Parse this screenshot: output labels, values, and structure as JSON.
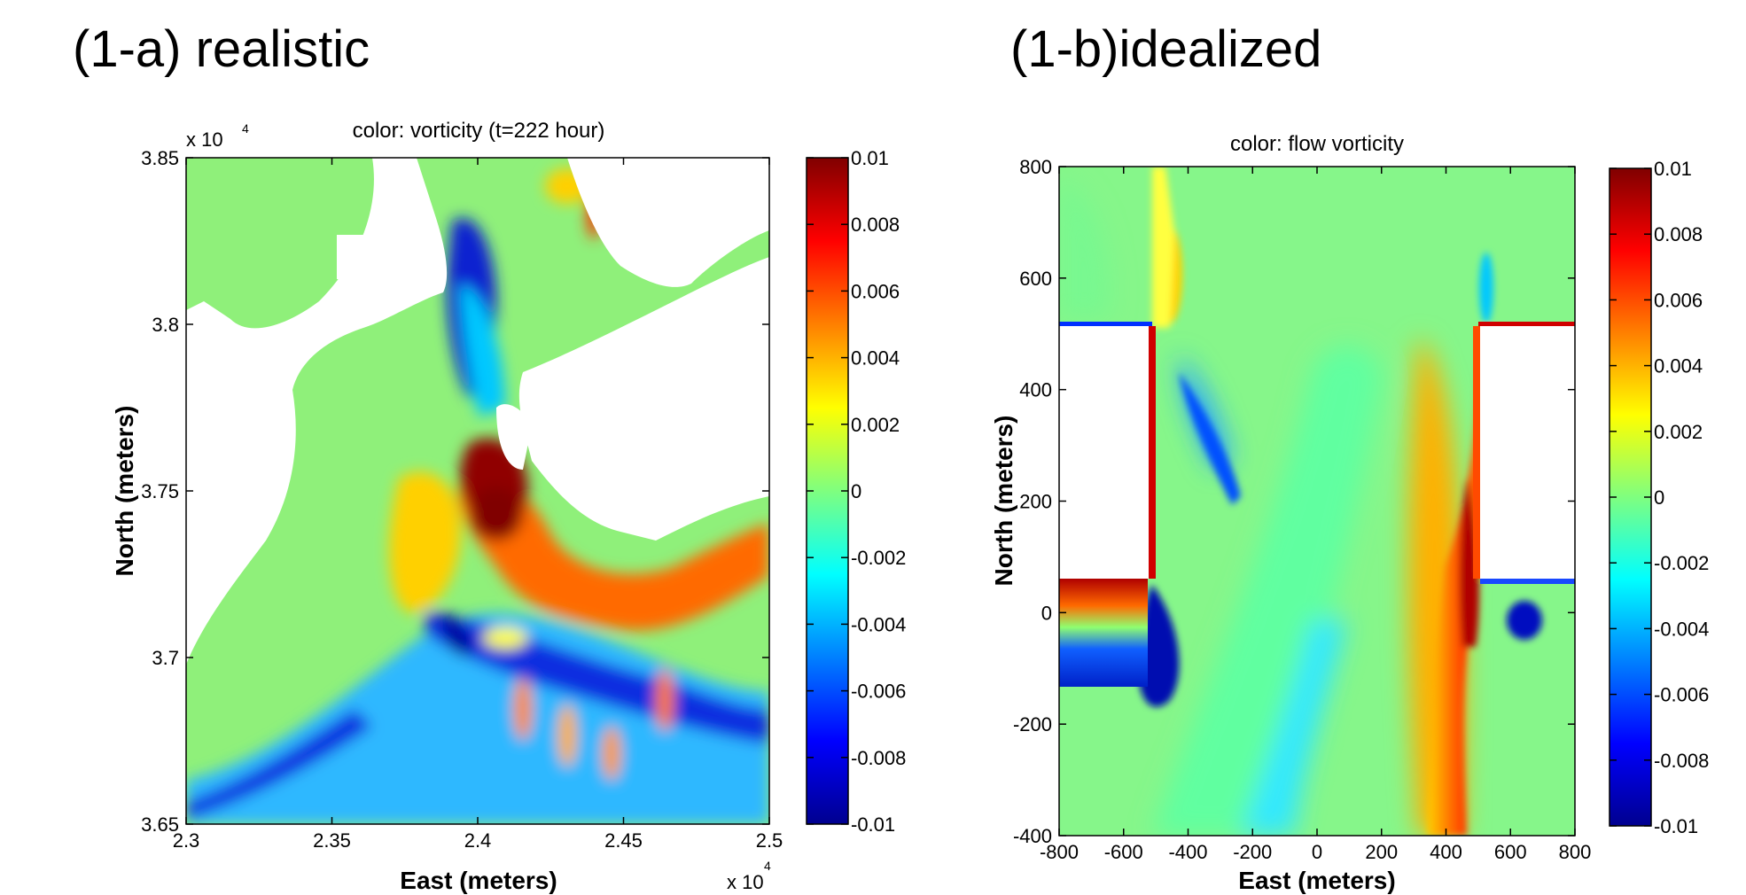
{
  "panels": {
    "a": {
      "label": "(1-a) realistic"
    },
    "b": {
      "label": "(1-b)idealized"
    }
  },
  "chart_data": [
    {
      "type": "heatmap",
      "title": "color: vorticity  (t=222 hour)",
      "xlabel": "East (meters)",
      "ylabel": "North (meters)",
      "xlim": [
        23000,
        25000
      ],
      "ylim": [
        36500,
        38500
      ],
      "x_ticks": [
        "2.3",
        "2.35",
        "2.4",
        "2.45",
        "2.5"
      ],
      "y_ticks": [
        "3.65",
        "3.7",
        "3.75",
        "3.8",
        "3.85"
      ],
      "x_multiplier": "x 10",
      "y_multiplier": "x 10",
      "multiplier_exponent": "4",
      "colorbar": {
        "colormap": "jet",
        "range": [
          -0.01,
          0.01
        ],
        "ticks": [
          "0.01",
          "0.008",
          "0.006",
          "0.004",
          "0.002",
          "0",
          "-0.002",
          "-0.004",
          "-0.006",
          "-0.008",
          "-0.01"
        ]
      }
    },
    {
      "type": "heatmap",
      "title": "color: flow vorticity",
      "xlabel": "East (meters)",
      "ylabel": "North (meters)",
      "xlim": [
        -800,
        800
      ],
      "ylim": [
        -400,
        800
      ],
      "x_ticks": [
        "-800",
        "-600",
        "-400",
        "-200",
        "0",
        "200",
        "400",
        "600",
        "800"
      ],
      "y_ticks": [
        "-400",
        "-200",
        "0",
        "200",
        "400",
        "600",
        "800"
      ],
      "colorbar": {
        "colormap": "jet",
        "range": [
          -0.01,
          0.01
        ],
        "ticks": [
          "0.01",
          "0.008",
          "0.006",
          "0.004",
          "0.002",
          "0",
          "-0.002",
          "-0.004",
          "-0.006",
          "-0.008",
          "-0.01"
        ]
      }
    }
  ],
  "colors": {
    "jet_dark_blue": "#00008f",
    "jet_blue": "#0000ff",
    "jet_cyan": "#00ffff",
    "jet_green": "#7fff7f",
    "jet_yellow": "#ffff00",
    "jet_red": "#ff0000",
    "jet_dark_red": "#800000",
    "background_field": "#79f58b",
    "land": "#ffffff"
  }
}
